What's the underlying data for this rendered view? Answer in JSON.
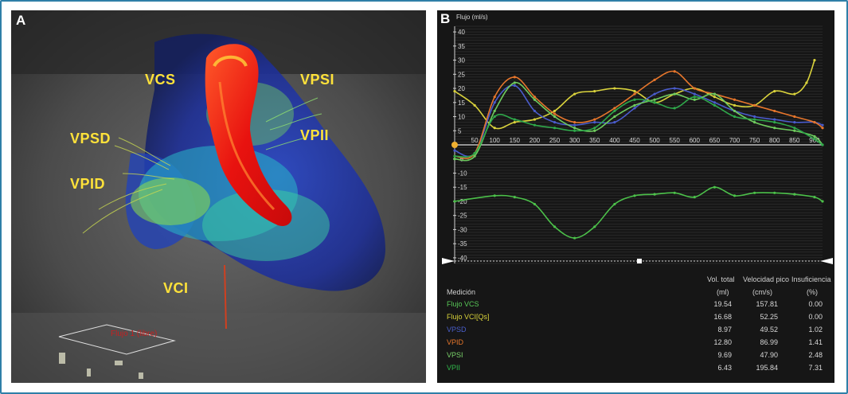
{
  "panel_a": {
    "letter": "A",
    "labels": {
      "vcs": "VCS",
      "vpsi": "VPSI",
      "vpsd": "VPSD",
      "vpii": "VPII",
      "vpid": "VPID",
      "vci": "VCI"
    },
    "plane_label": "Flujo 1 (libre)",
    "label_color": "#ffe23a"
  },
  "panel_b": {
    "letter": "B",
    "table": {
      "headers": {
        "measurement": "Medición",
        "vol_total": "Vol. total",
        "vol_unit": "(ml)",
        "peak_vel": "Velocidad pico",
        "peak_unit": "(cm/s)",
        "insuf": "Insuficiencia",
        "insuf_unit": "(%)"
      },
      "rows": [
        {
          "name": "Flujo VCS",
          "vol": "19.54",
          "vel": "157.81",
          "insuf": "0.00",
          "color": "#58c957"
        },
        {
          "name": "Flujo VCI[Qs]",
          "vol": "16.68",
          "vel": "52.25",
          "insuf": "0.00",
          "color": "#d8d23a"
        },
        {
          "name": "VPSD",
          "vol": "8.97",
          "vel": "49.52",
          "insuf": "1.02",
          "color": "#4a5fcc"
        },
        {
          "name": "VPID",
          "vol": "12.80",
          "vel": "86.99",
          "insuf": "1.41",
          "color": "#e8762a"
        },
        {
          "name": "VPSI",
          "vol": "9.69",
          "vel": "47.90",
          "insuf": "2.48",
          "color": "#7ad36a"
        },
        {
          "name": "VPII",
          "vol": "6.43",
          "vel": "195.84",
          "insuf": "7.31",
          "color": "#30b84a"
        }
      ]
    }
  },
  "chart_data": {
    "type": "line",
    "ylabel": "Flujo (ml/s)",
    "xlabel": "",
    "ylim": [
      -42,
      42
    ],
    "xlim": [
      0,
      920
    ],
    "yticks": [
      40,
      35,
      30,
      25,
      20,
      15,
      10,
      5,
      -5,
      -10,
      -15,
      -20,
      -25,
      -30,
      -35,
      -40
    ],
    "xticks": [
      50,
      100,
      150,
      200,
      250,
      300,
      350,
      400,
      450,
      500,
      550,
      600,
      650,
      700,
      750,
      800,
      850,
      900
    ],
    "series": [
      {
        "name": "Flujo VCS",
        "color": "#4cc14a",
        "x": [
          0,
          100,
          150,
          200,
          250,
          300,
          350,
          400,
          450,
          500,
          550,
          600,
          650,
          700,
          750,
          800,
          850,
          900,
          920
        ],
        "y": [
          -20,
          -18,
          -18.5,
          -21,
          -29,
          -33,
          -29,
          -21,
          -18,
          -17.5,
          -17,
          -18.5,
          -15,
          -18,
          -17,
          -17,
          -17.5,
          -18.5,
          -20
        ]
      },
      {
        "name": "Flujo VCI[Qs]",
        "color": "#d9d23c",
        "x": [
          0,
          50,
          100,
          150,
          200,
          250,
          300,
          350,
          400,
          450,
          500,
          550,
          600,
          650,
          700,
          750,
          800,
          850,
          880,
          900
        ],
        "y": [
          19,
          14,
          6,
          8,
          9,
          12,
          18,
          19,
          20,
          19,
          15,
          18,
          20,
          17,
          14,
          14,
          19,
          18,
          22,
          30
        ]
      },
      {
        "name": "VPSD",
        "color": "#4a5ccc",
        "x": [
          0,
          50,
          100,
          150,
          200,
          250,
          300,
          350,
          400,
          450,
          500,
          550,
          600,
          650,
          700,
          750,
          800,
          850,
          900,
          920
        ],
        "y": [
          -2,
          -3,
          15,
          21,
          12,
          8,
          7,
          8,
          8,
          13,
          18,
          20,
          18,
          15,
          12,
          10,
          9,
          8,
          8,
          7
        ]
      },
      {
        "name": "VPID",
        "color": "#e6762c",
        "x": [
          0,
          50,
          100,
          150,
          200,
          250,
          300,
          350,
          400,
          450,
          500,
          550,
          600,
          650,
          700,
          750,
          800,
          850,
          900,
          920
        ],
        "y": [
          -4,
          -3,
          17,
          24,
          17,
          11,
          8,
          9,
          13,
          18,
          23,
          26,
          20,
          18,
          16,
          14,
          12,
          10,
          8,
          6
        ]
      },
      {
        "name": "VPSI",
        "color": "#6fcb5e",
        "x": [
          0,
          50,
          100,
          150,
          200,
          250,
          300,
          350,
          400,
          450,
          500,
          550,
          600,
          650,
          700,
          750,
          800,
          850,
          900,
          920
        ],
        "y": [
          -5,
          -4,
          12,
          22,
          16,
          10,
          6,
          5,
          10,
          14,
          16,
          18,
          16,
          18,
          12,
          8,
          6,
          5,
          3,
          0
        ]
      },
      {
        "name": "VPII",
        "color": "#2fa84a",
        "x": [
          0,
          50,
          100,
          150,
          200,
          250,
          300,
          350,
          400,
          450,
          500,
          550,
          600,
          650,
          700,
          750,
          800,
          850,
          900,
          920
        ],
        "y": [
          -4,
          -3,
          10,
          9,
          7,
          6,
          5,
          6,
          12,
          16,
          15,
          13,
          17,
          14,
          10,
          9,
          8,
          6,
          2,
          0
        ]
      }
    ]
  }
}
